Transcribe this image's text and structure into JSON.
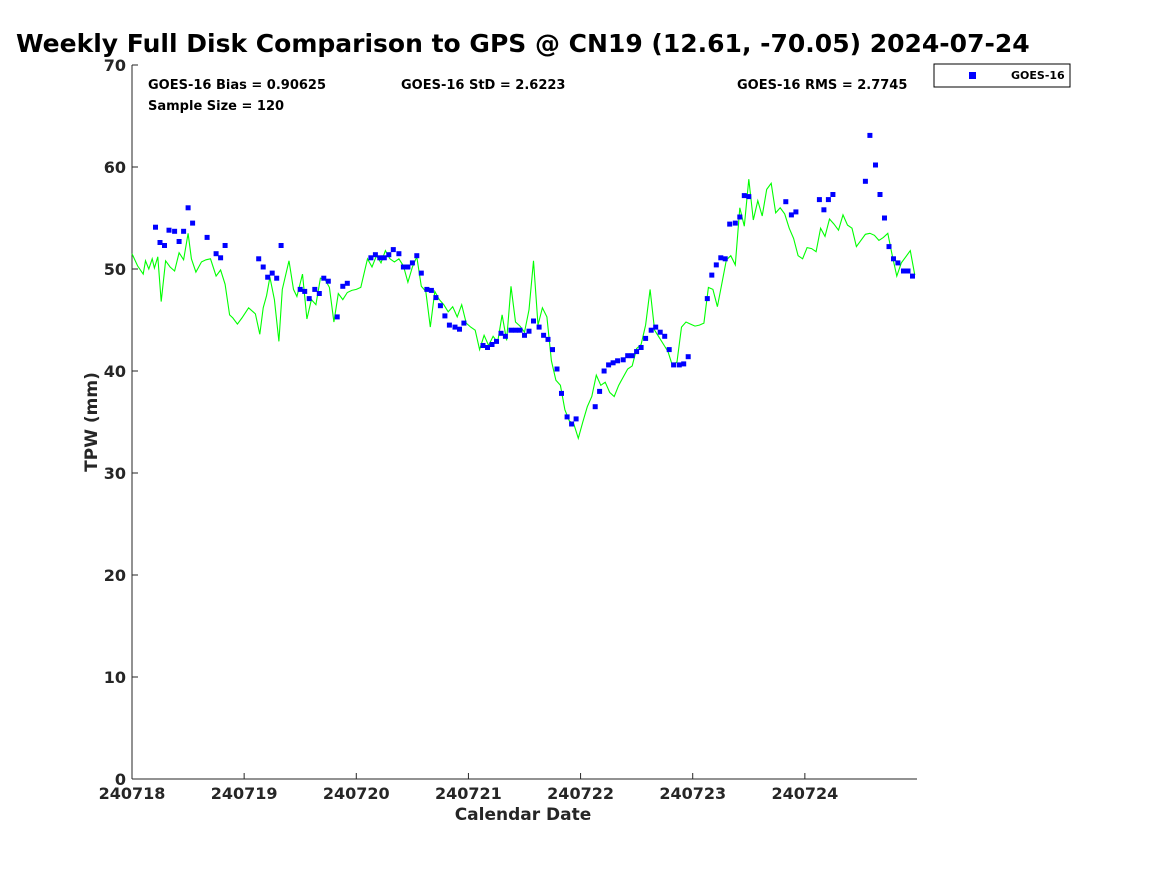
{
  "chart_data": {
    "type": "scatter",
    "title": "Weekly Full Disk Comparison to GPS @ CN19 (12.61, -70.05) 2024-07-24",
    "xlabel": "Calendar Date",
    "ylabel": "TPW (mm)",
    "xlim": [
      240718,
      240725
    ],
    "ylim": [
      0,
      70
    ],
    "x_tick_labels": [
      "240718",
      "240719",
      "240720",
      "240721",
      "240722",
      "240723",
      "240724"
    ],
    "y_ticks": [
      0,
      10,
      20,
      30,
      40,
      50,
      60,
      70
    ],
    "grid": false,
    "legend_position": "top-right",
    "stats": {
      "bias": "GOES-16 Bias = 0.90625",
      "std": "GOES-16 StD = 2.6223",
      "rms": "GOES-16 RMS = 2.7745",
      "sample": "Sample Size = 120"
    },
    "series": [
      {
        "name": "GOES-16",
        "kind": "scatter",
        "color": "#0000ff",
        "x": [
          240718.21,
          240718.25,
          240718.29,
          240718.33,
          240718.38,
          240718.42,
          240718.46,
          240718.5,
          240718.54,
          240718.67,
          240718.75,
          240718.79,
          240718.83,
          240719.13,
          240719.17,
          240719.21,
          240719.25,
          240719.29,
          240719.33,
          240719.5,
          240719.54,
          240719.58,
          240719.63,
          240719.67,
          240719.71,
          240719.75,
          240719.83,
          240719.88,
          240719.92,
          240720.13,
          240720.17,
          240720.21,
          240720.25,
          240720.29,
          240720.33,
          240720.38,
          240720.42,
          240720.46,
          240720.5,
          240720.54,
          240720.58,
          240720.63,
          240720.67,
          240720.71,
          240720.75,
          240720.79,
          240720.83,
          240720.88,
          240720.92,
          240720.96,
          240721.13,
          240721.17,
          240721.21,
          240721.25,
          240721.29,
          240721.33,
          240721.38,
          240721.42,
          240721.46,
          240721.5,
          240721.54,
          240721.58,
          240721.63,
          240721.67,
          240721.71,
          240721.75,
          240721.79,
          240721.83,
          240721.88,
          240721.92,
          240721.96,
          240722.13,
          240722.17,
          240722.21,
          240722.25,
          240722.29,
          240722.33,
          240722.38,
          240722.42,
          240722.46,
          240722.5,
          240722.54,
          240722.58,
          240722.63,
          240722.67,
          240722.71,
          240722.75,
          240722.79,
          240722.83,
          240722.88,
          240722.92,
          240722.96,
          240723.13,
          240723.17,
          240723.21,
          240723.25,
          240723.29,
          240723.33,
          240723.38,
          240723.42,
          240723.46,
          240723.5,
          240723.83,
          240723.88,
          240723.92,
          240724.13,
          240724.17,
          240724.21,
          240724.25,
          240724.54,
          240724.58,
          240724.63,
          240724.67,
          240724.71,
          240724.75,
          240724.79,
          240724.83,
          240724.88,
          240724.92,
          240724.96
        ],
        "y": [
          54.1,
          52.6,
          52.3,
          53.8,
          53.7,
          52.7,
          53.7,
          56.0,
          54.5,
          53.1,
          51.5,
          51.1,
          52.3,
          51.0,
          50.2,
          49.2,
          49.6,
          49.1,
          52.3,
          48.0,
          47.8,
          47.1,
          48.0,
          47.6,
          49.1,
          48.8,
          45.3,
          48.3,
          48.6,
          51.1,
          51.4,
          51.1,
          51.1,
          51.4,
          51.9,
          51.5,
          50.2,
          50.2,
          50.6,
          51.3,
          49.6,
          48.0,
          47.9,
          47.2,
          46.4,
          45.4,
          44.5,
          44.3,
          44.1,
          44.7,
          42.5,
          42.3,
          42.6,
          42.9,
          43.7,
          43.4,
          44.0,
          44.0,
          44.0,
          43.5,
          43.9,
          44.9,
          44.3,
          43.5,
          43.1,
          42.1,
          40.2,
          37.8,
          35.5,
          34.8,
          35.3,
          36.5,
          38.0,
          40.0,
          40.6,
          40.8,
          41.0,
          41.1,
          41.5,
          41.5,
          41.9,
          42.3,
          43.2,
          44.0,
          44.3,
          43.8,
          43.4,
          42.1,
          40.6,
          40.6,
          40.7,
          41.4,
          47.1,
          49.4,
          50.4,
          51.1,
          51.0,
          54.4,
          54.5,
          55.1,
          57.2,
          57.1,
          56.6,
          55.3,
          55.6,
          56.8,
          55.8,
          56.8,
          57.3,
          58.6,
          63.1,
          60.2,
          57.3,
          55.0,
          52.2,
          51.0,
          50.6,
          49.8,
          49.8,
          49.3
        ]
      },
      {
        "name": "",
        "kind": "line",
        "color": "#00ff00",
        "x": [
          240718.0,
          240718.05,
          240718.1,
          240718.12,
          240718.15,
          240718.18,
          240718.2,
          240718.23,
          240718.26,
          240718.3,
          240718.34,
          240718.38,
          240718.42,
          240718.46,
          240718.5,
          240718.53,
          240718.57,
          240718.62,
          240718.66,
          240718.7,
          240718.75,
          240718.79,
          240718.83,
          240718.87,
          240718.9,
          240718.94,
          240718.98,
          240719.04,
          240719.1,
          240719.14,
          240719.17,
          240719.2,
          240719.23,
          240719.27,
          240719.31,
          240719.34,
          240719.4,
          240719.44,
          240719.47,
          240719.52,
          240719.56,
          240719.6,
          240719.64,
          240719.68,
          240719.72,
          240719.76,
          240719.8,
          240719.84,
          240719.88,
          240719.92,
          240719.96,
          240720.0,
          240720.04,
          240720.1,
          240720.14,
          240720.18,
          240720.22,
          240720.26,
          240720.3,
          240720.34,
          240720.38,
          240720.42,
          240720.46,
          240720.5,
          240720.54,
          240720.58,
          240720.62,
          240720.66,
          240720.7,
          240720.74,
          240720.78,
          240720.82,
          240720.86,
          240720.9,
          240720.94,
          240720.98,
          240721.02,
          240721.06,
          240721.1,
          240721.14,
          240721.18,
          240721.22,
          240721.26,
          240721.3,
          240721.34,
          240721.38,
          240721.42,
          240721.46,
          240721.5,
          240721.54,
          240721.58,
          240721.62,
          240721.66,
          240721.7,
          240721.74,
          240721.78,
          240721.82,
          240721.86,
          240721.9,
          240721.94,
          240721.98,
          240722.02,
          240722.06,
          240722.1,
          240722.14,
          240722.18,
          240722.22,
          240722.26,
          240722.3,
          240722.34,
          240722.38,
          240722.42,
          240722.46,
          240722.5,
          240722.54,
          240722.58,
          240722.62,
          240722.66,
          240722.7,
          240722.74,
          240722.78,
          240722.82,
          240722.86,
          240722.9,
          240722.94,
          240722.98,
          240723.02,
          240723.06,
          240723.1,
          240723.14,
          240723.18,
          240723.22,
          240723.26,
          240723.3,
          240723.34,
          240723.38,
          240723.42,
          240723.46,
          240723.5,
          240723.54,
          240723.58,
          240723.62,
          240723.66,
          240723.7,
          240723.74,
          240723.78,
          240723.82,
          240723.86,
          240723.9,
          240723.94,
          240723.98,
          240724.02,
          240724.06,
          240724.1,
          240724.14,
          240724.18,
          240724.22,
          240724.26,
          240724.3,
          240724.34,
          240724.38,
          240724.42,
          240724.46,
          240724.5,
          240724.54,
          240724.58,
          240724.62,
          240724.66,
          240724.7,
          240724.74,
          240724.78,
          240724.82,
          240724.86,
          240724.9,
          240724.94,
          240724.98
        ],
        "y": [
          51.5,
          50.3,
          49.5,
          50.8,
          50.0,
          51.0,
          50.1,
          51.2,
          46.8,
          50.8,
          50.2,
          49.8,
          51.6,
          50.9,
          53.5,
          51.0,
          49.7,
          50.7,
          50.9,
          51.0,
          49.3,
          49.9,
          48.5,
          45.5,
          45.2,
          44.6,
          45.2,
          46.2,
          45.6,
          43.6,
          46.2,
          47.4,
          49.2,
          47.0,
          42.9,
          48.0,
          50.8,
          48.0,
          47.3,
          49.5,
          45.1,
          47.0,
          46.5,
          49.1,
          49.0,
          48.2,
          44.8,
          47.6,
          47.0,
          47.7,
          47.9,
          48.0,
          48.2,
          51.0,
          50.2,
          51.3,
          50.6,
          51.8,
          51.0,
          50.7,
          51.0,
          50.3,
          48.7,
          50.2,
          51.2,
          48.3,
          47.8,
          44.3,
          47.8,
          47.0,
          46.5,
          45.8,
          46.3,
          45.3,
          46.5,
          44.7,
          44.3,
          44.0,
          42.1,
          43.5,
          42.5,
          43.4,
          42.8,
          45.5,
          43.0,
          48.3,
          44.8,
          44.4,
          43.8,
          46.0,
          50.8,
          44.5,
          46.2,
          45.3,
          41.0,
          39.1,
          38.6,
          36.2,
          35.1,
          34.8,
          33.4,
          35.0,
          36.5,
          37.5,
          39.6,
          38.6,
          38.9,
          37.9,
          37.5,
          38.6,
          39.4,
          40.2,
          40.5,
          42.2,
          42.6,
          44.5,
          48.0,
          44.0,
          43.3,
          42.6,
          41.9,
          40.5,
          40.9,
          44.3,
          44.8,
          44.6,
          44.4,
          44.5,
          44.7,
          48.2,
          48.0,
          46.3,
          48.6,
          50.9,
          51.3,
          50.4,
          56.0,
          54.2,
          58.8,
          54.8,
          56.7,
          55.2,
          57.8,
          58.4,
          55.5,
          56.0,
          55.4,
          54.0,
          53.0,
          51.3,
          51.0,
          52.1,
          52.0,
          51.7,
          54.0,
          53.2,
          54.9,
          54.4,
          53.8,
          55.3,
          54.3,
          54.0,
          52.2,
          52.8,
          53.4,
          53.5,
          53.3,
          52.8,
          53.1,
          53.5,
          51.3,
          49.3,
          50.6,
          51.2,
          51.8,
          49.4
        ]
      }
    ]
  }
}
